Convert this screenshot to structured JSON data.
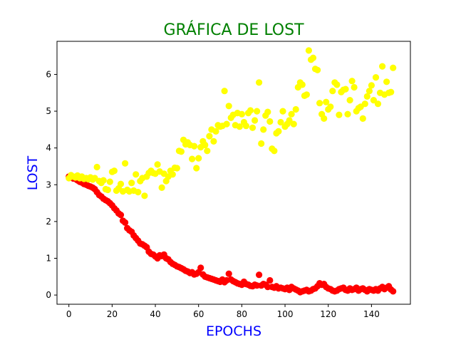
{
  "chart_data": {
    "type": "scatter",
    "title": "GRÁFICA DE LOST",
    "xlabel": "EPOCHS",
    "ylabel": "LOST",
    "xlim": [
      -5.5,
      158
    ],
    "ylim": [
      -0.25,
      6.9
    ],
    "xticks": [
      0,
      20,
      40,
      60,
      80,
      100,
      120,
      140
    ],
    "yticks": [
      0,
      1,
      2,
      3,
      4,
      5,
      6
    ],
    "grid": false,
    "colors": {
      "title": "#008000",
      "axis_labels": "#0000ff"
    },
    "series": [
      {
        "color": "#ff0000",
        "x": [
          0,
          1,
          2,
          3,
          4,
          5,
          6,
          7,
          8,
          9,
          10,
          11,
          12,
          13,
          14,
          15,
          16,
          17,
          18,
          19,
          20,
          21,
          22,
          23,
          24,
          25,
          26,
          27,
          28,
          29,
          30,
          31,
          32,
          33,
          34,
          35,
          36,
          37,
          38,
          39,
          40,
          41,
          42,
          43,
          44,
          45,
          46,
          47,
          48,
          49,
          50,
          51,
          52,
          53,
          54,
          55,
          56,
          57,
          58,
          59,
          60,
          61,
          62,
          63,
          64,
          65,
          66,
          67,
          68,
          69,
          70,
          71,
          72,
          73,
          74,
          75,
          76,
          77,
          78,
          79,
          80,
          81,
          82,
          83,
          84,
          85,
          86,
          87,
          88,
          89,
          90,
          91,
          92,
          93,
          94,
          95,
          96,
          97,
          98,
          99,
          100,
          101,
          102,
          103,
          104,
          105,
          106,
          107,
          108,
          109,
          110,
          111,
          112,
          113,
          114,
          115,
          116,
          117,
          118,
          119,
          120,
          121,
          122,
          123,
          124,
          125,
          126,
          127,
          128,
          129,
          130,
          131,
          132,
          133,
          134,
          135,
          136,
          137,
          138,
          139,
          140,
          141,
          142,
          143,
          144,
          145,
          146,
          147,
          148,
          149,
          150
        ],
        "y": [
          3.22,
          3.2,
          3.17,
          3.16,
          3.12,
          3.08,
          3.06,
          3.02,
          3.0,
          2.97,
          2.95,
          2.92,
          2.88,
          2.8,
          2.72,
          2.68,
          2.62,
          2.58,
          2.55,
          2.5,
          2.44,
          2.36,
          2.3,
          2.22,
          2.18,
          2.02,
          1.97,
          1.82,
          1.76,
          1.72,
          1.62,
          1.55,
          1.48,
          1.4,
          1.38,
          1.34,
          1.3,
          1.18,
          1.12,
          1.1,
          1.05,
          1.0,
          1.08,
          1.06,
          1.1,
          1.0,
          0.97,
          0.9,
          0.85,
          0.82,
          0.78,
          0.76,
          0.73,
          0.7,
          0.66,
          0.64,
          0.6,
          0.62,
          0.56,
          0.58,
          0.62,
          0.74,
          0.56,
          0.5,
          0.48,
          0.46,
          0.44,
          0.42,
          0.4,
          0.38,
          0.36,
          0.42,
          0.35,
          0.4,
          0.58,
          0.42,
          0.38,
          0.35,
          0.32,
          0.3,
          0.28,
          0.36,
          0.3,
          0.28,
          0.25,
          0.24,
          0.28,
          0.26,
          0.55,
          0.26,
          0.3,
          0.28,
          0.22,
          0.4,
          0.22,
          0.2,
          0.24,
          0.18,
          0.2,
          0.18,
          0.16,
          0.2,
          0.14,
          0.22,
          0.18,
          0.15,
          0.12,
          0.08,
          0.1,
          0.12,
          0.14,
          0.1,
          0.12,
          0.16,
          0.18,
          0.24,
          0.32,
          0.28,
          0.3,
          0.22,
          0.18,
          0.16,
          0.12,
          0.1,
          0.12,
          0.16,
          0.18,
          0.2,
          0.14,
          0.12,
          0.18,
          0.14,
          0.16,
          0.2,
          0.12,
          0.16,
          0.18,
          0.14,
          0.1,
          0.16,
          0.14,
          0.12,
          0.16,
          0.12,
          0.18,
          0.22,
          0.16,
          0.2,
          0.24,
          0.15,
          0.1
        ]
      },
      {
        "color": "#ffff00",
        "x": [
          0,
          1,
          2,
          3,
          4,
          5,
          6,
          7,
          8,
          9,
          10,
          11,
          12,
          13,
          14,
          15,
          16,
          17,
          18,
          19,
          20,
          21,
          22,
          23,
          24,
          25,
          26,
          27,
          28,
          29,
          30,
          31,
          32,
          33,
          34,
          35,
          36,
          37,
          38,
          39,
          40,
          41,
          42,
          43,
          44,
          45,
          46,
          47,
          48,
          49,
          50,
          51,
          52,
          53,
          54,
          55,
          56,
          57,
          58,
          59,
          60,
          61,
          62,
          63,
          64,
          65,
          66,
          67,
          68,
          69,
          70,
          71,
          72,
          73,
          74,
          75,
          76,
          77,
          78,
          79,
          80,
          81,
          82,
          83,
          84,
          85,
          86,
          87,
          88,
          89,
          90,
          91,
          92,
          93,
          94,
          95,
          96,
          97,
          98,
          99,
          100,
          101,
          102,
          103,
          104,
          105,
          106,
          107,
          108,
          109,
          110,
          111,
          112,
          113,
          114,
          115,
          116,
          117,
          118,
          119,
          120,
          121,
          122,
          123,
          124,
          125,
          126,
          127,
          128,
          129,
          130,
          131,
          132,
          133,
          134,
          135,
          136,
          137,
          138,
          139,
          140,
          141,
          142,
          143,
          144,
          145,
          146,
          147,
          148,
          149,
          150
        ],
        "y": [
          3.18,
          3.26,
          3.22,
          3.2,
          3.25,
          3.18,
          3.22,
          3.16,
          3.18,
          3.15,
          3.2,
          3.14,
          3.18,
          3.48,
          3.1,
          3.05,
          3.12,
          2.88,
          2.86,
          3.08,
          3.35,
          3.38,
          2.84,
          2.9,
          3.02,
          2.82,
          3.58,
          2.86,
          2.82,
          3.05,
          2.84,
          3.28,
          2.8,
          3.1,
          3.18,
          2.7,
          3.22,
          3.32,
          3.38,
          3.32,
          3.3,
          3.55,
          3.36,
          2.92,
          3.3,
          3.1,
          3.22,
          3.38,
          3.28,
          3.46,
          3.45,
          3.92,
          3.9,
          4.22,
          4.1,
          4.15,
          4.08,
          3.7,
          4.05,
          3.45,
          3.72,
          4.02,
          4.18,
          4.08,
          3.92,
          4.32,
          4.5,
          4.18,
          4.45,
          4.62,
          4.58,
          4.6,
          5.55,
          4.65,
          5.14,
          4.82,
          4.9,
          4.62,
          4.95,
          4.58,
          4.92,
          4.7,
          4.6,
          4.95,
          5.02,
          4.55,
          4.75,
          5.0,
          5.78,
          4.12,
          4.5,
          4.88,
          4.98,
          4.72,
          3.98,
          3.92,
          4.4,
          4.45,
          4.7,
          5.0,
          4.58,
          4.65,
          4.75,
          4.92,
          4.65,
          5.05,
          5.65,
          5.78,
          5.72,
          5.42,
          5.45,
          6.65,
          6.4,
          6.45,
          6.15,
          6.12,
          5.22,
          4.92,
          4.8,
          5.25,
          5.05,
          5.12,
          5.55,
          5.78,
          5.72,
          4.9,
          5.52,
          5.58,
          5.6,
          4.92,
          5.3,
          5.82,
          5.65,
          5.0,
          5.08,
          5.12,
          4.8,
          5.2,
          5.4,
          5.55,
          5.7,
          5.3,
          5.92,
          5.2,
          5.5,
          6.22,
          5.45,
          5.8,
          5.5,
          5.52,
          6.18
        ]
      }
    ]
  }
}
